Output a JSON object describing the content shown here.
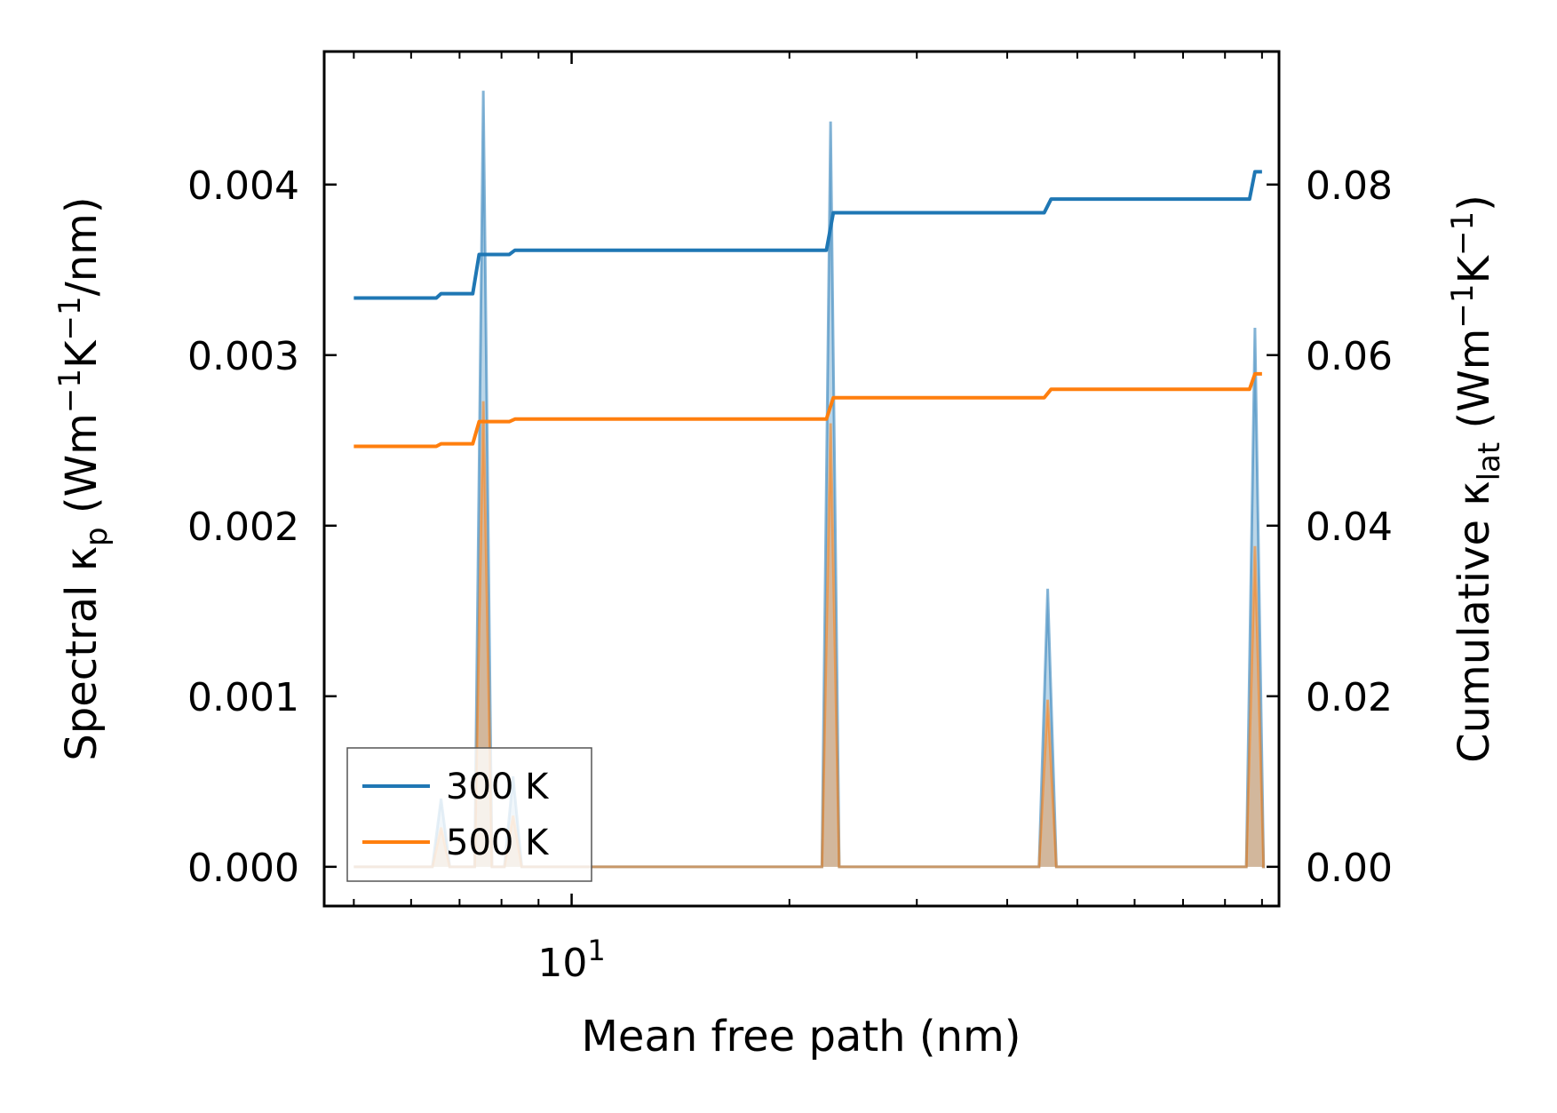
{
  "chart_data": {
    "type": "line",
    "xlabel": "Mean free path (nm)",
    "ylabel_left": "Spectral κ_p (Wm⁻¹K⁻¹/nm)",
    "ylabel_right": "Cumulative κ_lat (Wm⁻¹K⁻¹)",
    "x_scale": "log",
    "xlim": [
      4.55,
      95
    ],
    "ylim_left": [
      -0.00023,
      0.00478
    ],
    "ylim_right": [
      -0.0046,
      0.0956
    ],
    "left_ticks": [
      {
        "value": 0.0,
        "label": "0.000"
      },
      {
        "value": 0.001,
        "label": "0.001"
      },
      {
        "value": 0.002,
        "label": "0.002"
      },
      {
        "value": 0.003,
        "label": "0.003"
      },
      {
        "value": 0.004,
        "label": "0.004"
      }
    ],
    "right_ticks": [
      {
        "value": 0.0,
        "label": "0.00"
      },
      {
        "value": 0.02,
        "label": "0.02"
      },
      {
        "value": 0.04,
        "label": "0.04"
      },
      {
        "value": 0.06,
        "label": "0.06"
      },
      {
        "value": 0.08,
        "label": "0.08"
      }
    ],
    "x_major_ticks": [
      {
        "value": 10,
        "base": "10",
        "exp": "1"
      }
    ],
    "x_minor_ticks": [
      5,
      6,
      7,
      8,
      9,
      20,
      30,
      40,
      50,
      60,
      70,
      80,
      90
    ],
    "legend": {
      "position": "lower-left",
      "entries": [
        "300 K",
        "500 K"
      ]
    },
    "grid": false,
    "series": [
      {
        "name": "300 K",
        "color": "#1f77b4",
        "cumulative": [
          [
            5.0,
            0.0667
          ],
          [
            6.5,
            0.0667
          ],
          [
            6.6,
            0.0672
          ],
          [
            7.3,
            0.0672
          ],
          [
            7.45,
            0.0718
          ],
          [
            8.2,
            0.0718
          ],
          [
            8.35,
            0.0723
          ],
          [
            22.5,
            0.0723
          ],
          [
            23.0,
            0.0767
          ],
          [
            45.0,
            0.0767
          ],
          [
            46.0,
            0.0783
          ],
          [
            86.5,
            0.0783
          ],
          [
            88.0,
            0.0815
          ],
          [
            90.0,
            0.0815
          ]
        ],
        "spectral_peaks": [
          [
            6.6,
            0.0004
          ],
          [
            7.55,
            0.00455
          ],
          [
            8.3,
            0.00053
          ],
          [
            22.8,
            0.00437
          ],
          [
            45.5,
            0.00163
          ],
          [
            88.0,
            0.00316
          ]
        ]
      },
      {
        "name": "500 K",
        "color": "#ff7f0e",
        "cumulative": [
          [
            5.0,
            0.0493
          ],
          [
            6.5,
            0.0493
          ],
          [
            6.6,
            0.0496
          ],
          [
            7.3,
            0.0496
          ],
          [
            7.45,
            0.0522
          ],
          [
            8.2,
            0.0522
          ],
          [
            8.35,
            0.0525
          ],
          [
            22.5,
            0.0525
          ],
          [
            23.0,
            0.055
          ],
          [
            45.0,
            0.055
          ],
          [
            46.0,
            0.056
          ],
          [
            86.5,
            0.056
          ],
          [
            88.0,
            0.0578
          ],
          [
            90.0,
            0.0578
          ]
        ],
        "spectral_peaks": [
          [
            6.6,
            0.00023
          ],
          [
            7.55,
            0.00273
          ],
          [
            8.3,
            0.0003
          ],
          [
            22.8,
            0.0026
          ],
          [
            45.5,
            0.00098
          ],
          [
            88.0,
            0.00188
          ]
        ]
      }
    ]
  }
}
